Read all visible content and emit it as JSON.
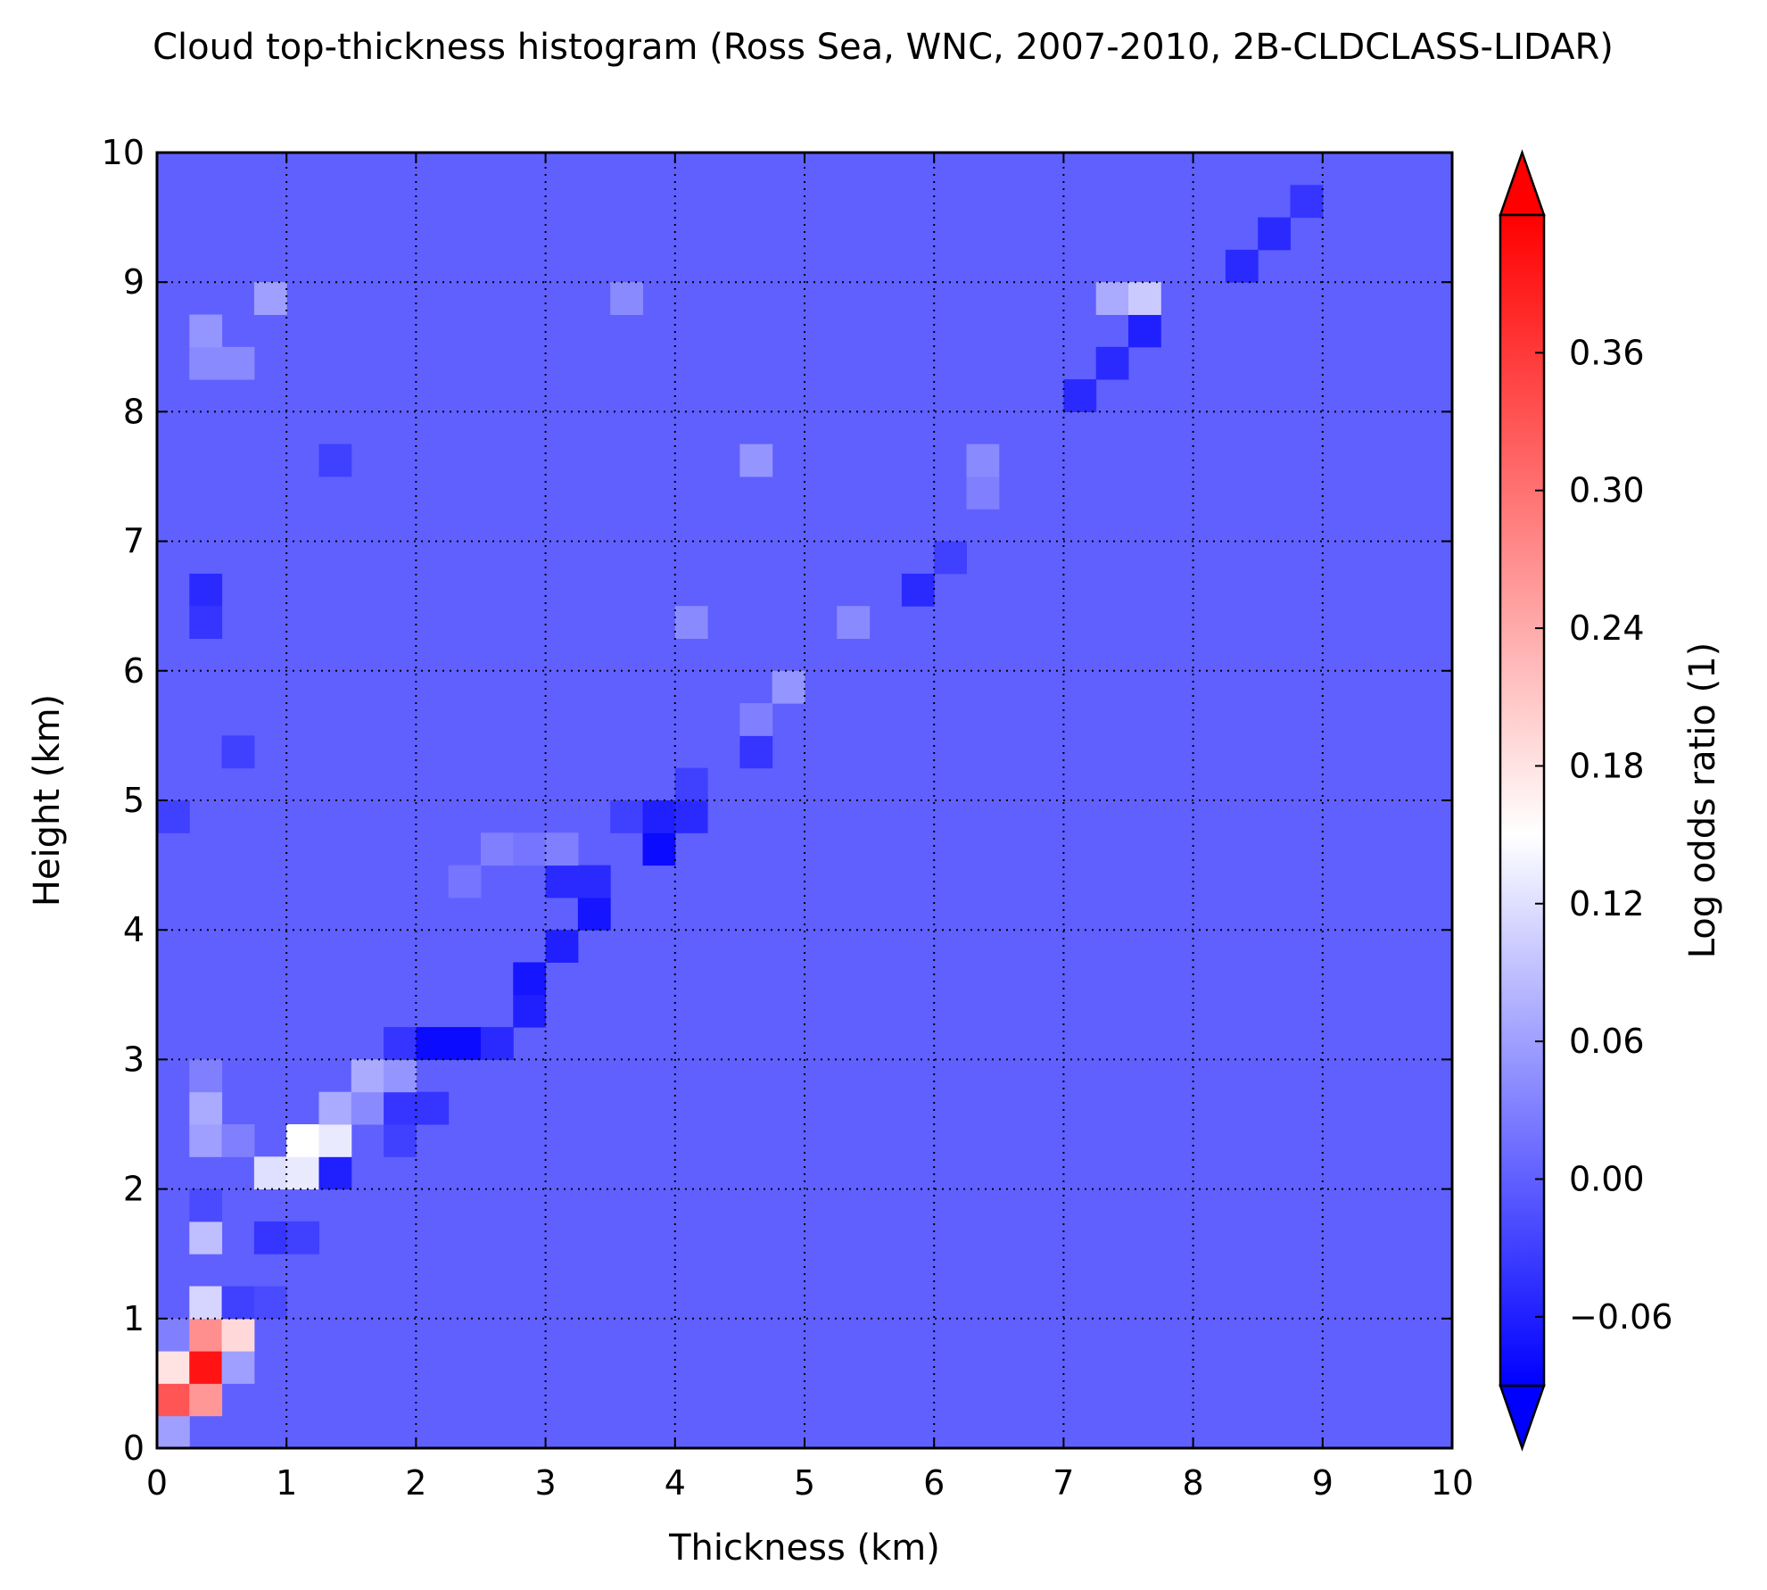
{
  "chart_data": {
    "type": "heatmap",
    "title": "Cloud top-thickness histogram (Ross Sea, WNC, 2007-2010, 2B-CLDCLASS-LIDAR)",
    "xlabel": "Thickness (km)",
    "ylabel": "Height (km)",
    "xlim": [
      0,
      10
    ],
    "ylim": [
      0,
      10
    ],
    "xticks": [
      "0",
      "1",
      "2",
      "3",
      "4",
      "5",
      "6",
      "7",
      "8",
      "9",
      "10"
    ],
    "yticks": [
      "0",
      "1",
      "2",
      "3",
      "4",
      "5",
      "6",
      "7",
      "8",
      "9",
      "10"
    ],
    "grid": true,
    "bin_size_km": 0.25,
    "background_value": 0.0,
    "colorbar": {
      "label": "Log odds ratio (1)",
      "range": [
        -0.09,
        0.42
      ],
      "extend": "both",
      "ticks": [
        {
          "value": -0.06,
          "label": "−0.06"
        },
        {
          "value": 0.0,
          "label": "0.00"
        },
        {
          "value": 0.06,
          "label": "0.06"
        },
        {
          "value": 0.12,
          "label": "0.12"
        },
        {
          "value": 0.18,
          "label": "0.18"
        },
        {
          "value": 0.24,
          "label": "0.24"
        },
        {
          "value": 0.3,
          "label": "0.30"
        },
        {
          "value": 0.36,
          "label": "0.36"
        }
      ],
      "colors": [
        "#0000ff",
        "#ffffff",
        "#ff0000"
      ],
      "center_value": 0.15
    },
    "cells": [
      {
        "x": 0.0,
        "y": 0.0,
        "v": 0.06
      },
      {
        "x": 0.0,
        "y": 0.25,
        "v": 0.33
      },
      {
        "x": 0.25,
        "y": 0.25,
        "v": 0.26
      },
      {
        "x": 0.0,
        "y": 0.5,
        "v": 0.18
      },
      {
        "x": 0.25,
        "y": 0.5,
        "v": 0.4
      },
      {
        "x": 0.5,
        "y": 0.5,
        "v": 0.06
      },
      {
        "x": 0.0,
        "y": 0.75,
        "v": 0.03
      },
      {
        "x": 0.25,
        "y": 0.75,
        "v": 0.27
      },
      {
        "x": 0.5,
        "y": 0.75,
        "v": 0.19
      },
      {
        "x": 0.25,
        "y": 1.0,
        "v": 0.11
      },
      {
        "x": 0.5,
        "y": 1.0,
        "v": -0.03
      },
      {
        "x": 0.75,
        "y": 1.0,
        "v": -0.02
      },
      {
        "x": 0.25,
        "y": 1.5,
        "v": 0.09
      },
      {
        "x": 0.75,
        "y": 1.5,
        "v": -0.04
      },
      {
        "x": 1.0,
        "y": 1.5,
        "v": -0.03
      },
      {
        "x": 0.25,
        "y": 1.75,
        "v": -0.02
      },
      {
        "x": 0.75,
        "y": 2.0,
        "v": 0.12
      },
      {
        "x": 1.0,
        "y": 2.0,
        "v": 0.13
      },
      {
        "x": 1.25,
        "y": 2.0,
        "v": -0.06
      },
      {
        "x": 0.25,
        "y": 2.25,
        "v": 0.06
      },
      {
        "x": 0.5,
        "y": 2.25,
        "v": 0.03
      },
      {
        "x": 1.0,
        "y": 2.25,
        "v": 0.15
      },
      {
        "x": 1.25,
        "y": 2.25,
        "v": 0.13
      },
      {
        "x": 1.75,
        "y": 2.25,
        "v": -0.03
      },
      {
        "x": 0.25,
        "y": 2.5,
        "v": 0.07
      },
      {
        "x": 1.25,
        "y": 2.5,
        "v": 0.07
      },
      {
        "x": 1.5,
        "y": 2.5,
        "v": 0.04
      },
      {
        "x": 1.75,
        "y": 2.5,
        "v": -0.04
      },
      {
        "x": 2.0,
        "y": 2.5,
        "v": -0.04
      },
      {
        "x": 0.25,
        "y": 2.75,
        "v": 0.03
      },
      {
        "x": 1.5,
        "y": 2.75,
        "v": 0.07
      },
      {
        "x": 1.75,
        "y": 2.75,
        "v": 0.05
      },
      {
        "x": 1.75,
        "y": 3.0,
        "v": -0.04
      },
      {
        "x": 2.0,
        "y": 3.0,
        "v": -0.08
      },
      {
        "x": 2.25,
        "y": 3.0,
        "v": -0.08
      },
      {
        "x": 2.5,
        "y": 3.0,
        "v": -0.05
      },
      {
        "x": 2.75,
        "y": 3.25,
        "v": -0.06
      },
      {
        "x": 2.75,
        "y": 3.5,
        "v": -0.07
      },
      {
        "x": 3.0,
        "y": 3.75,
        "v": -0.06
      },
      {
        "x": 3.25,
        "y": 4.0,
        "v": -0.07
      },
      {
        "x": 3.0,
        "y": 4.25,
        "v": -0.05
      },
      {
        "x": 3.25,
        "y": 4.25,
        "v": -0.05
      },
      {
        "x": 2.25,
        "y": 4.25,
        "v": 0.02
      },
      {
        "x": 2.5,
        "y": 4.5,
        "v": 0.03
      },
      {
        "x": 2.75,
        "y": 4.5,
        "v": 0.02
      },
      {
        "x": 3.0,
        "y": 4.5,
        "v": 0.03
      },
      {
        "x": 3.75,
        "y": 4.5,
        "v": -0.08
      },
      {
        "x": 3.5,
        "y": 4.75,
        "v": -0.03
      },
      {
        "x": 3.75,
        "y": 4.75,
        "v": -0.06
      },
      {
        "x": 4.0,
        "y": 4.75,
        "v": -0.05
      },
      {
        "x": 4.0,
        "y": 5.0,
        "v": -0.03
      },
      {
        "x": 4.5,
        "y": 5.25,
        "v": -0.04
      },
      {
        "x": 4.5,
        "y": 5.5,
        "v": 0.03
      },
      {
        "x": 4.75,
        "y": 5.75,
        "v": 0.05
      },
      {
        "x": 4.0,
        "y": 6.25,
        "v": 0.04
      },
      {
        "x": 5.25,
        "y": 6.25,
        "v": 0.04
      },
      {
        "x": 5.75,
        "y": 6.5,
        "v": -0.05
      },
      {
        "x": 6.0,
        "y": 6.75,
        "v": -0.03
      },
      {
        "x": 6.25,
        "y": 7.25,
        "v": 0.03
      },
      {
        "x": 4.5,
        "y": 7.5,
        "v": 0.05
      },
      {
        "x": 6.25,
        "y": 7.5,
        "v": 0.04
      },
      {
        "x": 7.0,
        "y": 8.0,
        "v": -0.05
      },
      {
        "x": 7.25,
        "y": 8.25,
        "v": -0.05
      },
      {
        "x": 7.5,
        "y": 8.5,
        "v": -0.06
      },
      {
        "x": 7.25,
        "y": 8.75,
        "v": 0.07
      },
      {
        "x": 7.5,
        "y": 8.75,
        "v": 0.1
      },
      {
        "x": 8.25,
        "y": 9.0,
        "v": -0.05
      },
      {
        "x": 8.5,
        "y": 9.25,
        "v": -0.05
      },
      {
        "x": 8.75,
        "y": 9.5,
        "v": -0.04
      },
      {
        "x": 0.75,
        "y": 8.75,
        "v": 0.06
      },
      {
        "x": 3.5,
        "y": 8.75,
        "v": 0.04
      },
      {
        "x": 0.25,
        "y": 8.25,
        "v": 0.04
      },
      {
        "x": 0.25,
        "y": 8.5,
        "v": 0.05
      },
      {
        "x": 0.5,
        "y": 8.25,
        "v": 0.04
      },
      {
        "x": 0.25,
        "y": 6.5,
        "v": -0.05
      },
      {
        "x": 0.25,
        "y": 6.25,
        "v": -0.04
      },
      {
        "x": 1.25,
        "y": 7.5,
        "v": -0.03
      },
      {
        "x": 0.5,
        "y": 5.25,
        "v": -0.03
      },
      {
        "x": 0.0,
        "y": 4.75,
        "v": -0.03
      }
    ]
  }
}
